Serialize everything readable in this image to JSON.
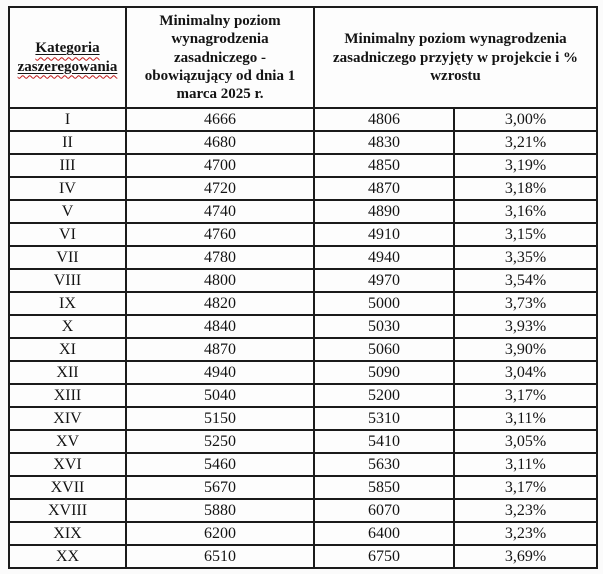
{
  "table": {
    "headers": {
      "category": "Kategoria zaszeregowania",
      "current_min": "Minimalny poziom wynagrodzenia zasadniczego - obowiązujący od dnia 1 marca 2025 r.",
      "proposed_and_growth": "Minimalny poziom wynagrodzenia zasadniczego przyjęty w projekcie i % wzrostu"
    },
    "rows": [
      {
        "category": "I",
        "current": "4666",
        "proposed": "4806",
        "growth": "3,00%"
      },
      {
        "category": "II",
        "current": "4680",
        "proposed": "4830",
        "growth": "3,21%"
      },
      {
        "category": "III",
        "current": "4700",
        "proposed": "4850",
        "growth": "3,19%"
      },
      {
        "category": "IV",
        "current": "4720",
        "proposed": "4870",
        "growth": "3,18%"
      },
      {
        "category": "V",
        "current": "4740",
        "proposed": "4890",
        "growth": "3,16%"
      },
      {
        "category": "VI",
        "current": "4760",
        "proposed": "4910",
        "growth": "3,15%"
      },
      {
        "category": "VII",
        "current": "4780",
        "proposed": "4940",
        "growth": "3,35%"
      },
      {
        "category": "VIII",
        "current": "4800",
        "proposed": "4970",
        "growth": "3,54%"
      },
      {
        "category": "IX",
        "current": "4820",
        "proposed": "5000",
        "growth": "3,73%"
      },
      {
        "category": "X",
        "current": "4840",
        "proposed": "5030",
        "growth": "3,93%"
      },
      {
        "category": "XI",
        "current": "4870",
        "proposed": "5060",
        "growth": "3,90%"
      },
      {
        "category": "XII",
        "current": "4940",
        "proposed": "5090",
        "growth": "3,04%"
      },
      {
        "category": "XIII",
        "current": "5040",
        "proposed": "5200",
        "growth": "3,17%"
      },
      {
        "category": "XIV",
        "current": "5150",
        "proposed": "5310",
        "growth": "3,11%"
      },
      {
        "category": "XV",
        "current": "5250",
        "proposed": "5410",
        "growth": "3,05%"
      },
      {
        "category": "XVI",
        "current": "5460",
        "proposed": "5630",
        "growth": "3,11%"
      },
      {
        "category": "XVII",
        "current": "5670",
        "proposed": "5850",
        "growth": "3,17%"
      },
      {
        "category": "XVIII",
        "current": "5880",
        "proposed": "6070",
        "growth": "3,23%"
      },
      {
        "category": "XIX",
        "current": "6200",
        "proposed": "6400",
        "growth": "3,23%"
      },
      {
        "category": "XX",
        "current": "6510",
        "proposed": "6750",
        "growth": "3,69%"
      }
    ]
  }
}
